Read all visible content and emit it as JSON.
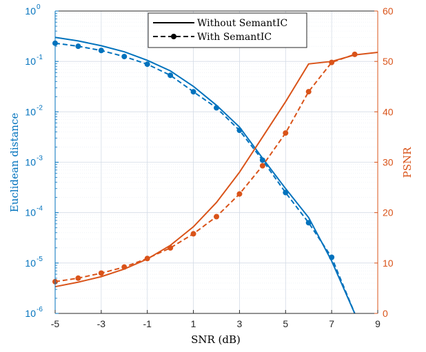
{
  "colors": {
    "left_axis": "#0072BD",
    "right_axis": "#D95319",
    "grid": "#d3dbe6",
    "grid_minor": "#e6ecf3",
    "frame": "#262626"
  },
  "chart_data": {
    "type": "line",
    "xlabel": "SNR (dB)",
    "ylabel_left": "Euclidean distance",
    "ylabel_right": "PSNR",
    "xlim": [
      -5,
      9
    ],
    "x_ticks": [
      -5,
      -3,
      -1,
      1,
      3,
      5,
      7,
      9
    ],
    "ylim_left": [
      1e-06,
      1
    ],
    "y_scale_left": "log",
    "y_ticks_left": [
      {
        "base": "10",
        "exp": "-6",
        "value": 1e-06
      },
      {
        "base": "10",
        "exp": "-5",
        "value": 1e-05
      },
      {
        "base": "10",
        "exp": "-4",
        "value": 0.0001
      },
      {
        "base": "10",
        "exp": "-3",
        "value": 0.001
      },
      {
        "base": "10",
        "exp": "-2",
        "value": 0.01
      },
      {
        "base": "10",
        "exp": "-1",
        "value": 0.1
      },
      {
        "base": "10",
        "exp": "0",
        "value": 1
      }
    ],
    "ylim_right": [
      0,
      60
    ],
    "y_ticks_right": [
      0,
      10,
      20,
      30,
      40,
      50,
      60
    ],
    "grid": true,
    "legend": {
      "position": "top-center",
      "entries": [
        {
          "label": "Without SemantIC",
          "style": "solid"
        },
        {
          "label": "With SemantIC",
          "style": "dashed-dot-marker"
        }
      ]
    },
    "series": [
      {
        "legend": "Without SemantIC",
        "axis": "left",
        "style": "solid",
        "x": [
          -5,
          -4,
          -3,
          -2,
          -1,
          0,
          1,
          2,
          3,
          4,
          5,
          6,
          7,
          8
        ],
        "y": [
          0.3,
          0.255,
          0.205,
          0.155,
          0.105,
          0.065,
          0.032,
          0.0135,
          0.005,
          0.0012,
          0.0003,
          8e-05,
          1.1e-05,
          6e-07
        ]
      },
      {
        "legend": "With SemantIC",
        "axis": "left",
        "style": "dashed",
        "markers": true,
        "x": [
          -5,
          -4,
          -3,
          -2,
          -1,
          0,
          1,
          2,
          3,
          4,
          5,
          6,
          7,
          8
        ],
        "y": [
          0.23,
          0.2,
          0.165,
          0.125,
          0.088,
          0.053,
          0.025,
          0.012,
          0.0043,
          0.0011,
          0.00025,
          6.3e-05,
          1.3e-05,
          6e-07
        ],
        "marker_x": [
          -5,
          -4,
          -3,
          -2,
          -1,
          0,
          1,
          2,
          3,
          4,
          5,
          6,
          7
        ],
        "marker_y": [
          0.23,
          0.2,
          0.165,
          0.125,
          0.088,
          0.053,
          0.025,
          0.012,
          0.0043,
          0.0011,
          0.00025,
          6.3e-05,
          1.3e-05
        ]
      },
      {
        "legend": "Without SemantIC",
        "axis": "right",
        "style": "solid",
        "x": [
          -5,
          -4,
          -3,
          -2,
          -1,
          0,
          1,
          2,
          3,
          4,
          5,
          6,
          7,
          8,
          9
        ],
        "y": [
          5.3,
          6.2,
          7.3,
          8.8,
          10.8,
          13.5,
          17.2,
          22.0,
          28.0,
          35.0,
          42.0,
          49.5,
          50.0,
          51.3,
          51.8
        ]
      },
      {
        "legend": "With SemantIC",
        "axis": "right",
        "style": "dashed",
        "markers": true,
        "x": [
          -5,
          -4,
          -3,
          -2,
          -1,
          0,
          1,
          2,
          3,
          4,
          5,
          6,
          7,
          8
        ],
        "y": [
          6.3,
          7.0,
          8.0,
          9.2,
          10.9,
          13.0,
          15.8,
          19.2,
          23.7,
          29.3,
          35.8,
          44.0,
          49.8,
          51.4
        ],
        "marker_x": [
          -5,
          -4,
          -3,
          -2,
          -1,
          0,
          1,
          2,
          3,
          4,
          5,
          6,
          7,
          8
        ],
        "marker_y": [
          6.3,
          7.0,
          8.0,
          9.2,
          10.9,
          13.0,
          15.8,
          19.2,
          23.7,
          29.3,
          35.8,
          44.0,
          49.8,
          51.4
        ]
      }
    ]
  }
}
